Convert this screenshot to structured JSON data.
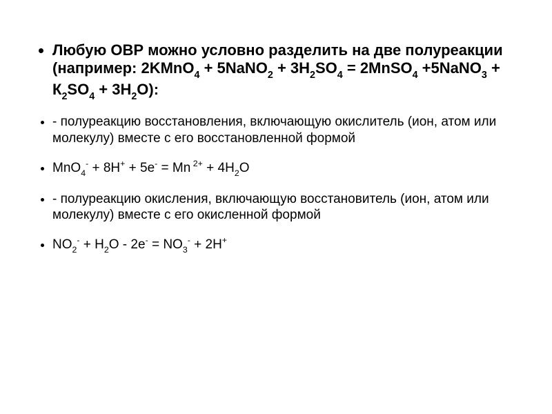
{
  "slide": {
    "background_color": "#ffffff",
    "text_color": "#000000",
    "font_family": "Arial",
    "bullets": [
      {
        "kind": "heading",
        "fontsize": 22,
        "bold": true,
        "text_html": "Любую ОВР можно условно разделить на две полуреакции  (например: 2KMnO<sub>4</sub> + 5NaNO<sub>2</sub> + 3H<sub>2</sub>SO<sub>4</sub> = 2MnSO<sub>4</sub> +5NaNO<sub>3</sub> + К<sub>2</sub>SO<sub>4</sub> + 3H<sub>2</sub>O):"
      },
      {
        "kind": "item",
        "fontsize": 19,
        "bold": false,
        "text_html": "- полуреакцию восстановления, включающую окислитель (ион, атом или молекулу) вместе с его восстановленной формой"
      },
      {
        "kind": "item",
        "fontsize": 19,
        "bold": false,
        "text_html": "MnO<sub>4</sub><sup>-</sup> + 8H<sup>+</sup>  + 5e<sup>-</sup>  =   Mn<sup> 2+</sup> + 4H<sub>2</sub>O"
      },
      {
        "kind": "item",
        "fontsize": 19,
        "bold": false,
        "text_html": "- полуреакцию окисления, включающую восстановитель (ион, атом или молекулу) вместе с его окисленной формой"
      },
      {
        "kind": "item",
        "fontsize": 19,
        "bold": false,
        "text_html": "NO<sub>2</sub><sup>-</sup>   + H<sub>2</sub>O  -  2e<sup>-</sup>  =   NO<sub>3</sub><sup>-</sup>   +  2H<sup>+</sup>"
      }
    ]
  }
}
